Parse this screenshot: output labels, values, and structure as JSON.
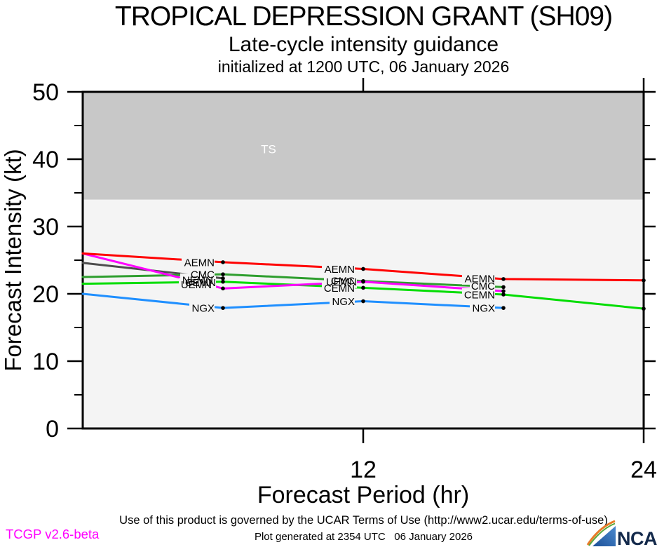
{
  "header": {
    "title": "TROPICAL DEPRESSION GRANT (SH09)",
    "subtitle": "Late-cycle intensity guidance",
    "initialized": "initialized at 1200 UTC, 06 January 2026"
  },
  "chart_data": {
    "type": "line",
    "title": "TROPICAL DEPRESSION GRANT (SH09)",
    "subtitle": "Late-cycle intensity guidance",
    "initialized": "initialized at 1200 UTC, 06 January 2026",
    "xlabel": "Forecast Period (hr)",
    "ylabel": "Forecast Intensity (kt)",
    "xlim": [
      0,
      24
    ],
    "ylim": [
      0,
      50
    ],
    "xticks": [
      12,
      24
    ],
    "yticks": [
      0,
      10,
      20,
      30,
      40,
      50
    ],
    "yticks_minor": [
      5,
      15,
      25,
      35,
      45
    ],
    "grid": false,
    "plot_bg": "#f4f4f4",
    "ts_zone": {
      "label": "TS",
      "from_kt": 34,
      "to_kt": 50,
      "fill": "#c8c8c8",
      "label_color": "#ffffff",
      "label_x_hr": 7.95,
      "label_y_kt": 41.5
    },
    "series": [
      {
        "name": "NEMN",
        "color": "#4d4d4d",
        "x": [
          0,
          6
        ],
        "y": [
          24.6,
          22.3
        ]
      },
      {
        "name": "CMC",
        "color": "#2e9e2e",
        "x": [
          0,
          6,
          12,
          18
        ],
        "y": [
          22.5,
          22.9,
          21.9,
          21.0
        ]
      },
      {
        "name": "CEMN",
        "color": "#00dd00",
        "x": [
          0,
          6,
          12,
          18,
          24
        ],
        "y": [
          21.5,
          21.8,
          20.9,
          19.9,
          17.8
        ]
      },
      {
        "name": "NGX",
        "color": "#1f8fff",
        "x": [
          0,
          6,
          12,
          18
        ],
        "y": [
          20.0,
          17.9,
          18.9,
          17.9
        ]
      },
      {
        "name": "UEMN",
        "color": "#ff00ff",
        "x": [
          0,
          6,
          12,
          18
        ],
        "y": [
          26.0,
          20.8,
          21.8,
          20.4
        ]
      },
      {
        "name": "AEMN",
        "color": "#ff0000",
        "x": [
          0,
          6,
          12,
          18,
          24
        ],
        "y": [
          26.0,
          24.7,
          23.7,
          22.2,
          22.0
        ]
      }
    ],
    "point_labels": [
      {
        "text": "AEMN",
        "hr": 6,
        "kt": 24.7
      },
      {
        "text": "CMC",
        "hr": 6,
        "kt": 22.9
      },
      {
        "text": "NEMN",
        "hr": 6,
        "kt": 22.1,
        "dx": -2
      },
      {
        "text": "CEMN",
        "hr": 6,
        "kt": 21.7,
        "dx": 2
      },
      {
        "text": "UEMN",
        "hr": 6,
        "kt": 21.4,
        "dx": -4
      },
      {
        "text": "NGX",
        "hr": 6,
        "kt": 17.9
      },
      {
        "text": "AEMN",
        "hr": 12,
        "kt": 23.7
      },
      {
        "text": "CMC",
        "hr": 12,
        "kt": 22.0
      },
      {
        "text": "UEMN",
        "hr": 12,
        "kt": 21.8,
        "dx": 3
      },
      {
        "text": "CEMN",
        "hr": 12,
        "kt": 20.9
      },
      {
        "text": "NGX",
        "hr": 12,
        "kt": 18.9
      },
      {
        "text": "AEMN",
        "hr": 18,
        "kt": 22.3
      },
      {
        "text": "CMC",
        "hr": 18,
        "kt": 21.2
      },
      {
        "text": "CEMN",
        "hr": 18,
        "kt": 19.9
      },
      {
        "text": "NGX",
        "hr": 18,
        "kt": 17.9
      }
    ]
  },
  "footer": {
    "terms": "Use of this product is governed by the UCAR Terms of Use (http://www2.ucar.edu/terms-of-use)",
    "version": "TCGP v2.6-beta",
    "generated": "Plot generated at 2354 UTC   06 January 2026",
    "logo_text": "NCAR"
  }
}
